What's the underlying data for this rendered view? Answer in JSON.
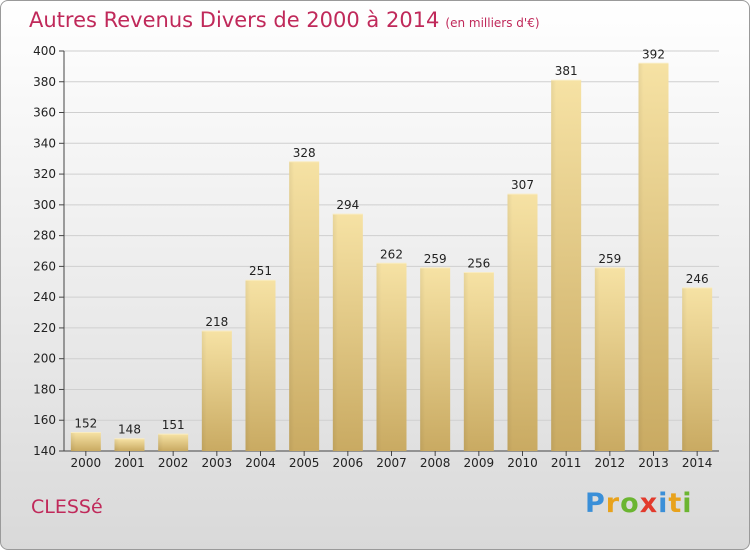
{
  "title": "Autres Revenus Divers de 2000 à 2014",
  "subtitle": "(en milliers d'€)",
  "commune": "CLESSé",
  "logo": {
    "letters": [
      {
        "char": "P",
        "color": "#3a8fd8"
      },
      {
        "char": "r",
        "color": "#e8a21c"
      },
      {
        "char": "o",
        "color": "#6bb531"
      },
      {
        "char": "x",
        "color": "#e23a2c"
      },
      {
        "char": "i",
        "color": "#3a8fd8"
      },
      {
        "char": "t",
        "color": "#e8a21c"
      },
      {
        "char": "i",
        "color": "#6bb531"
      }
    ]
  },
  "chart_data": {
    "type": "bar",
    "categories": [
      "2000",
      "2001",
      "2002",
      "2003",
      "2004",
      "2005",
      "2006",
      "2007",
      "2008",
      "2009",
      "2010",
      "2011",
      "2012",
      "2013",
      "2014"
    ],
    "values": [
      152,
      148,
      151,
      218,
      251,
      328,
      294,
      262,
      259,
      256,
      307,
      381,
      259,
      392,
      246
    ],
    "ylim": [
      140,
      400
    ],
    "yticks": [
      140,
      160,
      180,
      200,
      220,
      240,
      260,
      280,
      300,
      320,
      340,
      360,
      380,
      400
    ],
    "grid": true,
    "bar_color": "#e8cf86"
  }
}
